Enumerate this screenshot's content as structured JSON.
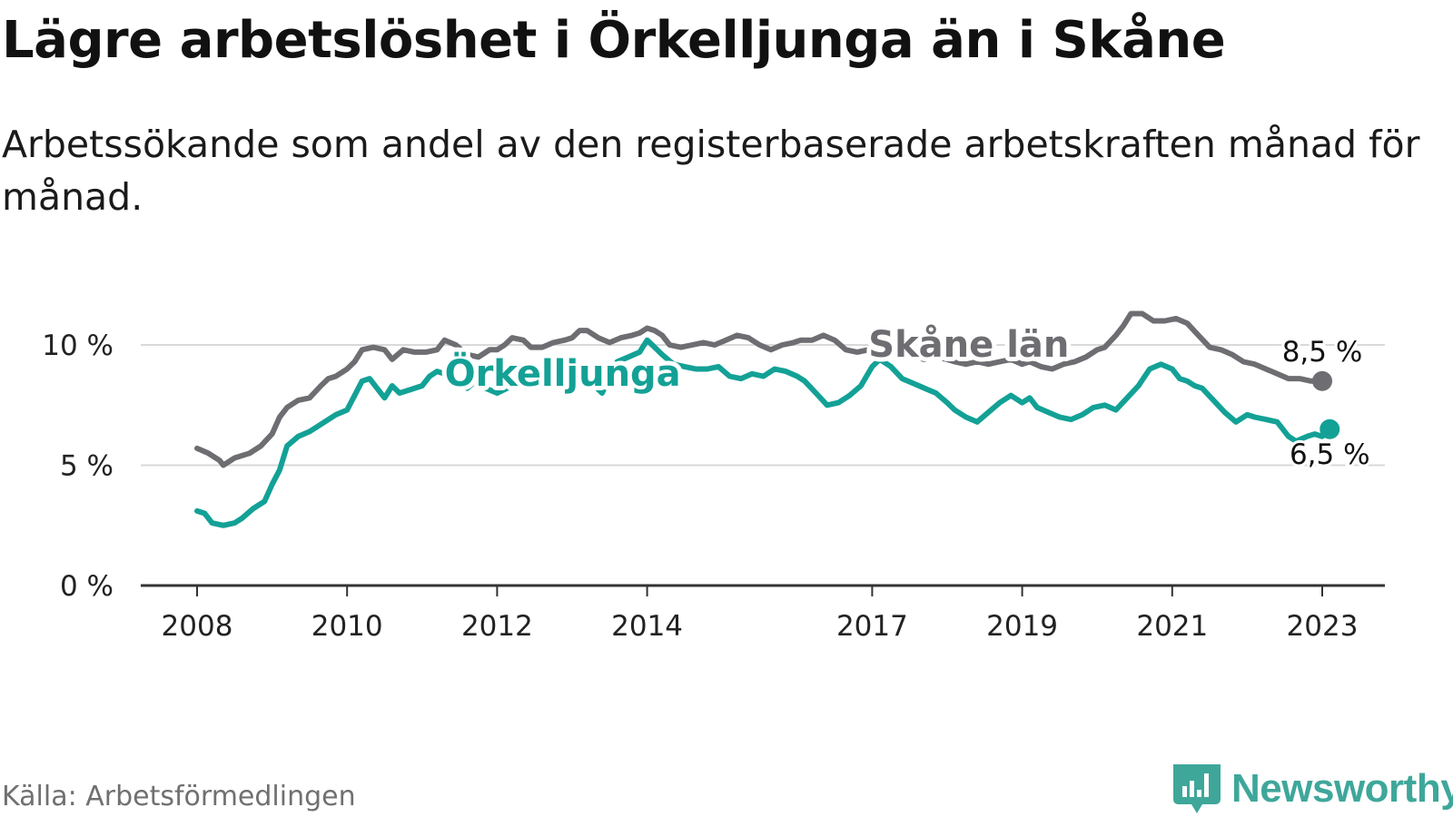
{
  "title": "Lägre arbetslöshet i Örkelljunga än i Skåne",
  "subtitle": "Arbetssökande som andel av den registerbaserade arbetskraften månad för månad.",
  "source": "Källa: Arbetsförmedlingen",
  "brand": "Newsworthy",
  "colors": {
    "accent": "#13a196",
    "secondary": "#6d6d72",
    "grid": "#d9d9d9",
    "axis": "#333333",
    "brand": "#3ea79a"
  },
  "chart_data": {
    "type": "line",
    "title": "Lägre arbetslöshet i Örkelljunga än i Skåne",
    "xlabel": "",
    "ylabel": "",
    "xlim": [
      2008.0,
      2023.6
    ],
    "ylim": [
      0,
      10
    ],
    "grid": true,
    "yticks": [
      {
        "value": 0,
        "label": "0 %"
      },
      {
        "value": 5,
        "label": "5 %"
      },
      {
        "value": 10,
        "label": "10 %"
      }
    ],
    "xticks": [
      {
        "value": 2008,
        "label": "2008"
      },
      {
        "value": 2010,
        "label": "2010"
      },
      {
        "value": 2012,
        "label": "2012"
      },
      {
        "value": 2014,
        "label": "2014"
      },
      {
        "value": 2017,
        "label": "2017"
      },
      {
        "value": 2019,
        "label": "2019"
      },
      {
        "value": 2021,
        "label": "2021"
      },
      {
        "value": 2023,
        "label": "2023"
      }
    ],
    "series": [
      {
        "name": "Skåne län",
        "color": "#6d6d72",
        "label_at": [
          2016.95,
          10.0
        ],
        "end_label": "8,5 %",
        "x": [
          2008.0,
          2008.15,
          2008.3,
          2008.35,
          2008.5,
          2008.7,
          2008.85,
          2009.0,
          2009.1,
          2009.2,
          2009.35,
          2009.5,
          2009.65,
          2009.75,
          2009.85,
          2010.0,
          2010.1,
          2010.2,
          2010.35,
          2010.5,
          2010.6,
          2010.75,
          2010.9,
          2011.05,
          2011.2,
          2011.3,
          2011.45,
          2011.6,
          2011.75,
          2011.9,
          2012.0,
          2012.1,
          2012.2,
          2012.35,
          2012.45,
          2012.6,
          2012.75,
          2012.9,
          2013.0,
          2013.1,
          2013.2,
          2013.35,
          2013.5,
          2013.65,
          2013.8,
          2013.9,
          2014.0,
          2014.1,
          2014.2,
          2014.3,
          2014.45,
          2014.6,
          2014.75,
          2014.9,
          2015.05,
          2015.2,
          2015.35,
          2015.5,
          2015.65,
          2015.8,
          2015.95,
          2016.05,
          2016.2,
          2016.35,
          2016.5,
          2016.65,
          2016.8,
          2016.95,
          2017.1,
          2017.25,
          2017.4,
          2017.55,
          2017.7,
          2017.85,
          2018.0,
          2018.1,
          2018.25,
          2018.4,
          2018.55,
          2018.7,
          2018.85,
          2019.0,
          2019.1,
          2019.25,
          2019.4,
          2019.55,
          2019.7,
          2019.85,
          2020.0,
          2020.1,
          2020.25,
          2020.35,
          2020.45,
          2020.6,
          2020.75,
          2020.9,
          2021.05,
          2021.2,
          2021.35,
          2021.5,
          2021.65,
          2021.8,
          2021.95,
          2022.1,
          2022.25,
          2022.4,
          2022.55,
          2022.7,
          2022.85,
          2023.0
        ],
        "y": [
          5.7,
          5.5,
          5.2,
          5.0,
          5.3,
          5.5,
          5.8,
          6.3,
          7.0,
          7.4,
          7.7,
          7.8,
          8.3,
          8.6,
          8.7,
          9.0,
          9.3,
          9.8,
          9.9,
          9.8,
          9.4,
          9.8,
          9.7,
          9.7,
          9.8,
          10.2,
          10.0,
          9.6,
          9.5,
          9.8,
          9.8,
          10.0,
          10.3,
          10.2,
          9.9,
          9.9,
          10.1,
          10.2,
          10.3,
          10.6,
          10.6,
          10.3,
          10.1,
          10.3,
          10.4,
          10.5,
          10.7,
          10.6,
          10.4,
          10.0,
          9.9,
          10.0,
          10.1,
          10.0,
          10.2,
          10.4,
          10.3,
          10.0,
          9.8,
          10.0,
          10.1,
          10.2,
          10.2,
          10.4,
          10.2,
          9.8,
          9.7,
          9.8,
          9.9,
          9.7,
          9.6,
          9.5,
          9.4,
          9.5,
          9.4,
          9.3,
          9.2,
          9.3,
          9.2,
          9.3,
          9.4,
          9.2,
          9.3,
          9.1,
          9.0,
          9.2,
          9.3,
          9.5,
          9.8,
          9.9,
          10.4,
          10.8,
          11.3,
          11.3,
          11.0,
          11.0,
          11.1,
          10.9,
          10.4,
          9.9,
          9.8,
          9.6,
          9.3,
          9.2,
          9.0,
          8.8,
          8.6,
          8.6,
          8.5,
          8.5
        ]
      },
      {
        "name": "Örkelljunga",
        "color": "#13a196",
        "label_at": [
          2011.3,
          8.8
        ],
        "end_label": "6,5 %",
        "x": [
          2008.0,
          2008.1,
          2008.2,
          2008.35,
          2008.5,
          2008.6,
          2008.75,
          2008.9,
          2009.0,
          2009.1,
          2009.2,
          2009.35,
          2009.5,
          2009.6,
          2009.75,
          2009.85,
          2010.0,
          2010.1,
          2010.2,
          2010.3,
          2010.4,
          2010.5,
          2010.6,
          2010.7,
          2010.8,
          2011.0,
          2011.1,
          2011.2,
          2011.3,
          2011.45,
          2011.6,
          2011.75,
          2011.85,
          2012.0,
          2012.2,
          2012.4,
          2012.6,
          2012.8,
          2013.0,
          2013.2,
          2013.4,
          2013.6,
          2013.75,
          2013.9,
          2014.0,
          2014.1,
          2014.2,
          2014.35,
          2014.5,
          2014.65,
          2014.8,
          2014.95,
          2015.1,
          2015.25,
          2015.4,
          2015.55,
          2015.7,
          2015.85,
          2016.0,
          2016.1,
          2016.25,
          2016.4,
          2016.55,
          2016.7,
          2016.85,
          2017.0,
          2017.1,
          2017.25,
          2017.4,
          2017.55,
          2017.7,
          2017.85,
          2018.0,
          2018.1,
          2018.25,
          2018.4,
          2018.55,
          2018.7,
          2018.85,
          2019.0,
          2019.1,
          2019.2,
          2019.35,
          2019.5,
          2019.65,
          2019.8,
          2019.95,
          2020.1,
          2020.25,
          2020.4,
          2020.55,
          2020.7,
          2020.85,
          2021.0,
          2021.1,
          2021.2,
          2021.3,
          2021.4,
          2021.55,
          2021.7,
          2021.85,
          2022.0,
          2022.1,
          2022.25,
          2022.4,
          2022.55,
          2022.65,
          2022.8,
          2022.9,
          2023.0,
          2023.1
        ],
        "y": [
          3.1,
          3.0,
          2.6,
          2.5,
          2.6,
          2.8,
          3.2,
          3.5,
          4.2,
          4.8,
          5.8,
          6.2,
          6.4,
          6.6,
          6.9,
          7.1,
          7.3,
          7.9,
          8.5,
          8.6,
          8.2,
          7.8,
          8.3,
          8.0,
          8.1,
          8.3,
          8.7,
          8.9,
          8.8,
          8.5,
          8.2,
          8.6,
          8.2,
          8.0,
          8.3,
          8.6,
          8.8,
          9.1,
          8.9,
          8.6,
          8.0,
          9.3,
          9.5,
          9.7,
          10.2,
          9.9,
          9.6,
          9.2,
          9.1,
          9.0,
          9.0,
          9.1,
          8.7,
          8.6,
          8.8,
          8.7,
          9.0,
          8.9,
          8.7,
          8.5,
          8.0,
          7.5,
          7.6,
          7.9,
          8.3,
          9.1,
          9.4,
          9.1,
          8.6,
          8.4,
          8.2,
          8.0,
          7.6,
          7.3,
          7.0,
          6.8,
          7.2,
          7.6,
          7.9,
          7.6,
          7.8,
          7.4,
          7.2,
          7.0,
          6.9,
          7.1,
          7.4,
          7.5,
          7.3,
          7.8,
          8.3,
          9.0,
          9.2,
          9.0,
          8.6,
          8.5,
          8.3,
          8.2,
          7.7,
          7.2,
          6.8,
          7.1,
          7.0,
          6.9,
          6.8,
          6.2,
          6.0,
          6.2,
          6.3,
          6.2,
          6.5
        ]
      }
    ]
  }
}
